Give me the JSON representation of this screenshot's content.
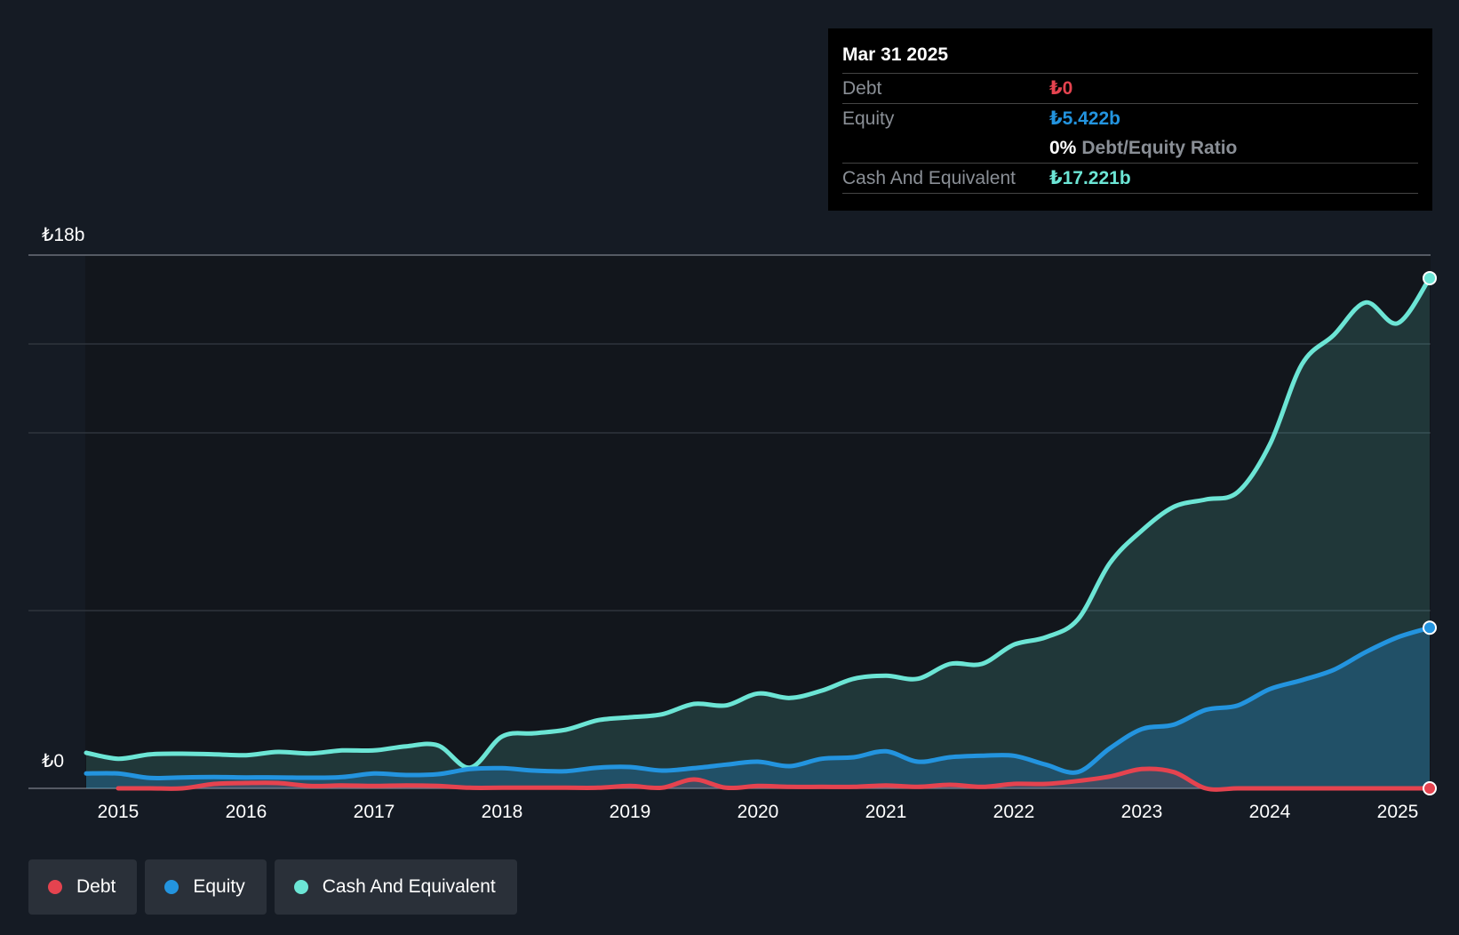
{
  "tooltip": {
    "date": "Mar 31 2025",
    "debt_label": "Debt",
    "debt_value": "₺0",
    "equity_label": "Equity",
    "equity_value": "₺5.422b",
    "ratio_value": "0%",
    "ratio_label": "Debt/Equity Ratio",
    "cash_label": "Cash And Equivalent",
    "cash_value": "₺17.221b"
  },
  "legend": [
    {
      "label": "Debt",
      "color": "#e5434f"
    },
    {
      "label": "Equity",
      "color": "#2394df"
    },
    {
      "label": "Cash And Equivalent",
      "color": "#6ce5d5"
    }
  ],
  "chart_data": {
    "type": "area",
    "title": "",
    "xlabel": "",
    "ylabel": "",
    "ylim": [
      0,
      18
    ],
    "y_unit": "₺ billions",
    "y_tick_labels": [
      "₺0",
      "₺18b"
    ],
    "x_ticks": [
      2015,
      2016,
      2017,
      2018,
      2019,
      2020,
      2021,
      2022,
      2023,
      2024,
      2025
    ],
    "colors": {
      "debt": "#e5434f",
      "equity": "#2394df",
      "cash": "#6ce5d5"
    },
    "series": [
      {
        "name": "Cash And Equivalent",
        "key": "cash",
        "x": [
          2014.75,
          2015.0,
          2015.25,
          2015.5,
          2015.75,
          2016.0,
          2016.25,
          2016.5,
          2016.75,
          2017.0,
          2017.25,
          2017.5,
          2017.75,
          2018.0,
          2018.25,
          2018.5,
          2018.75,
          2019.0,
          2019.25,
          2019.5,
          2019.75,
          2020.0,
          2020.25,
          2020.5,
          2020.75,
          2021.0,
          2021.25,
          2021.5,
          2021.75,
          2022.0,
          2022.25,
          2022.5,
          2022.75,
          2023.0,
          2023.25,
          2023.5,
          2023.75,
          2024.0,
          2024.25,
          2024.5,
          2024.75,
          2025.0,
          2025.25
        ],
        "values": [
          1.2,
          1.0,
          1.15,
          1.17,
          1.15,
          1.12,
          1.23,
          1.18,
          1.28,
          1.28,
          1.42,
          1.45,
          0.7,
          1.75,
          1.86,
          1.98,
          2.3,
          2.4,
          2.5,
          2.85,
          2.8,
          3.2,
          3.05,
          3.3,
          3.7,
          3.8,
          3.7,
          4.2,
          4.2,
          4.85,
          5.1,
          5.7,
          7.6,
          8.7,
          9.5,
          9.75,
          10.0,
          11.6,
          14.3,
          15.3,
          16.4,
          15.7,
          17.221
        ]
      },
      {
        "name": "Equity",
        "key": "equity",
        "x": [
          2014.75,
          2015.0,
          2015.25,
          2015.5,
          2015.75,
          2016.0,
          2016.25,
          2016.5,
          2016.75,
          2017.0,
          2017.25,
          2017.5,
          2017.75,
          2018.0,
          2018.25,
          2018.5,
          2018.75,
          2019.0,
          2019.25,
          2019.5,
          2019.75,
          2020.0,
          2020.25,
          2020.5,
          2020.75,
          2021.0,
          2021.25,
          2021.5,
          2021.75,
          2022.0,
          2022.25,
          2022.5,
          2022.75,
          2023.0,
          2023.25,
          2023.5,
          2023.75,
          2024.0,
          2024.25,
          2024.5,
          2024.75,
          2025.0,
          2025.25
        ],
        "values": [
          0.5,
          0.5,
          0.35,
          0.37,
          0.38,
          0.37,
          0.37,
          0.36,
          0.38,
          0.5,
          0.45,
          0.48,
          0.65,
          0.68,
          0.6,
          0.58,
          0.7,
          0.72,
          0.6,
          0.68,
          0.8,
          0.9,
          0.75,
          1.0,
          1.05,
          1.25,
          0.9,
          1.05,
          1.1,
          1.1,
          0.8,
          0.55,
          1.35,
          2.0,
          2.15,
          2.65,
          2.8,
          3.35,
          3.65,
          4.0,
          4.6,
          5.1,
          5.422
        ]
      },
      {
        "name": "Debt",
        "key": "debt",
        "x": [
          2015.0,
          2015.25,
          2015.5,
          2015.75,
          2016.0,
          2016.25,
          2016.5,
          2016.75,
          2017.0,
          2017.25,
          2017.5,
          2017.75,
          2018.0,
          2018.25,
          2018.5,
          2018.75,
          2019.0,
          2019.25,
          2019.5,
          2019.75,
          2020.0,
          2020.25,
          2020.5,
          2020.75,
          2021.0,
          2021.25,
          2021.5,
          2021.75,
          2022.0,
          2022.25,
          2022.5,
          2022.75,
          2023.0,
          2023.25,
          2023.5,
          2023.75,
          2024.0,
          2024.25,
          2024.5,
          2024.75,
          2025.0,
          2025.25
        ],
        "values": [
          0.0,
          0.0,
          0.0,
          0.15,
          0.18,
          0.18,
          0.08,
          0.1,
          0.08,
          0.1,
          0.08,
          0.02,
          0.02,
          0.02,
          0.02,
          0.02,
          0.08,
          0.02,
          0.3,
          0.02,
          0.08,
          0.05,
          0.05,
          0.05,
          0.1,
          0.05,
          0.12,
          0.05,
          0.15,
          0.15,
          0.25,
          0.4,
          0.65,
          0.55,
          0.0,
          0.0,
          0.0,
          0.0,
          0.0,
          0.0,
          0.0,
          0.0
        ]
      }
    ]
  }
}
